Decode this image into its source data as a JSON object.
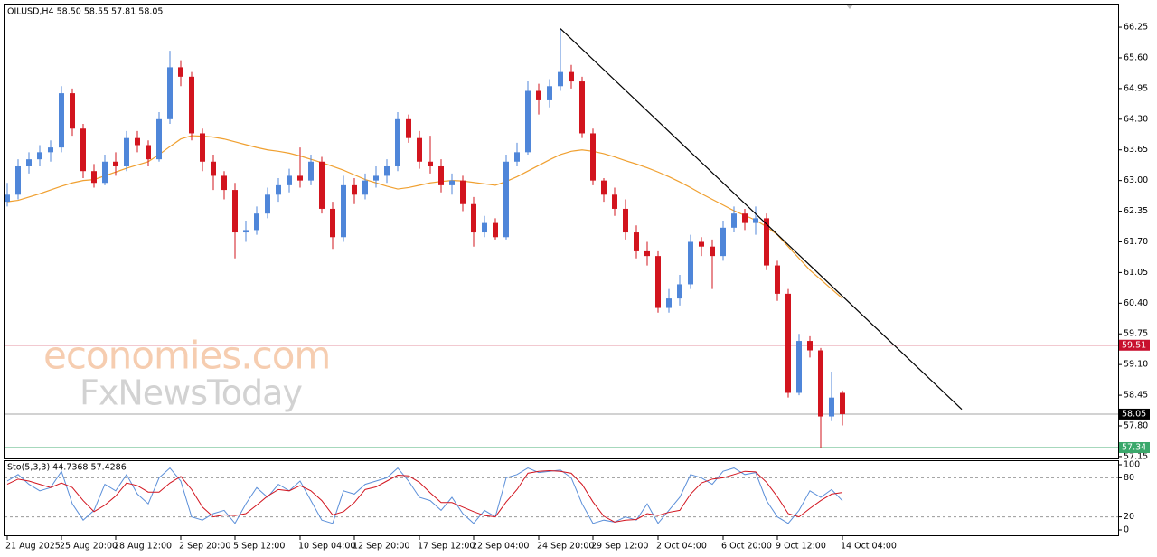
{
  "chart_data": {
    "type": "candlestick",
    "title": "OILUSD,H4  58.50 58.55 57.81 58.05",
    "up_color": "#4f86d9",
    "down_color": "#d2141e",
    "categories": [
      "21 Aug 2025",
      null,
      null,
      null,
      null,
      "25 Aug 20:00",
      null,
      null,
      null,
      null,
      "28 Aug 12:00",
      null,
      null,
      null,
      null,
      null,
      "2 Sep 20:00",
      null,
      null,
      null,
      null,
      "5 Sep 12:00",
      null,
      null,
      null,
      null,
      null,
      "10 Sep 04:00",
      null,
      null,
      null,
      null,
      "12 Sep 20:00",
      null,
      null,
      null,
      null,
      null,
      "17 Sep 12:00",
      null,
      null,
      null,
      null,
      "22 Sep 04:00",
      null,
      null,
      null,
      null,
      null,
      "24 Sep 20:00",
      null,
      null,
      null,
      null,
      "29 Sep 12:00",
      null,
      null,
      null,
      null,
      null,
      "2 Oct 04:00",
      null,
      null,
      null,
      null,
      null,
      "6 Oct 20:00",
      null,
      null,
      null,
      null,
      "9 Oct 12:00",
      null,
      null,
      null,
      null,
      null,
      "14 Oct 04:00"
    ],
    "candles": [
      [
        62.55,
        62.95,
        62.45,
        62.7
      ],
      [
        62.7,
        63.45,
        62.6,
        63.3
      ],
      [
        63.3,
        63.6,
        63.15,
        63.45
      ],
      [
        63.45,
        63.75,
        63.3,
        63.6
      ],
      [
        63.6,
        63.85,
        63.4,
        63.7
      ],
      [
        63.7,
        65.0,
        63.6,
        64.85
      ],
      [
        64.85,
        64.95,
        63.95,
        64.1
      ],
      [
        64.1,
        64.2,
        63.05,
        63.2
      ],
      [
        63.2,
        63.35,
        62.85,
        62.95
      ],
      [
        62.95,
        63.55,
        62.9,
        63.4
      ],
      [
        63.4,
        63.6,
        63.1,
        63.3
      ],
      [
        63.3,
        64.05,
        63.2,
        63.9
      ],
      [
        63.9,
        64.05,
        63.6,
        63.75
      ],
      [
        63.75,
        63.85,
        63.3,
        63.45
      ],
      [
        63.45,
        64.45,
        63.4,
        64.3
      ],
      [
        64.3,
        65.75,
        64.2,
        65.4
      ],
      [
        65.4,
        65.55,
        65.0,
        65.2
      ],
      [
        65.2,
        65.3,
        63.85,
        64.0
      ],
      [
        64.0,
        64.1,
        63.2,
        63.4
      ],
      [
        63.4,
        63.55,
        62.8,
        63.1
      ],
      [
        63.1,
        63.2,
        62.6,
        62.8
      ],
      [
        62.8,
        62.95,
        61.35,
        61.9
      ],
      [
        61.9,
        62.15,
        61.7,
        61.95
      ],
      [
        61.95,
        62.45,
        61.85,
        62.3
      ],
      [
        62.3,
        62.85,
        62.2,
        62.7
      ],
      [
        62.7,
        63.05,
        62.55,
        62.9
      ],
      [
        62.9,
        63.25,
        62.75,
        63.1
      ],
      [
        63.1,
        63.7,
        62.85,
        63.0
      ],
      [
        63.0,
        63.55,
        62.9,
        63.4
      ],
      [
        63.4,
        63.5,
        62.3,
        62.4
      ],
      [
        62.4,
        62.55,
        61.55,
        61.8
      ],
      [
        61.8,
        63.1,
        61.7,
        62.9
      ],
      [
        62.9,
        63.05,
        62.5,
        62.7
      ],
      [
        62.7,
        63.15,
        62.6,
        63.0
      ],
      [
        63.0,
        63.3,
        62.85,
        63.1
      ],
      [
        63.1,
        63.45,
        62.95,
        63.3
      ],
      [
        63.3,
        64.45,
        63.2,
        64.3
      ],
      [
        64.3,
        64.4,
        63.8,
        63.9
      ],
      [
        63.9,
        64.05,
        63.25,
        63.4
      ],
      [
        63.4,
        63.95,
        63.15,
        63.3
      ],
      [
        63.3,
        63.45,
        62.75,
        62.9
      ],
      [
        62.9,
        63.15,
        62.7,
        63.0
      ],
      [
        63.0,
        63.1,
        62.35,
        62.5
      ],
      [
        62.5,
        62.65,
        61.6,
        61.9
      ],
      [
        61.9,
        62.25,
        61.8,
        62.1
      ],
      [
        62.1,
        62.2,
        61.75,
        61.8
      ],
      [
        61.8,
        63.55,
        61.75,
        63.4
      ],
      [
        63.4,
        63.8,
        63.3,
        63.6
      ],
      [
        63.6,
        65.1,
        63.55,
        64.9
      ],
      [
        64.9,
        65.05,
        64.4,
        64.7
      ],
      [
        64.7,
        65.15,
        64.55,
        65.0
      ],
      [
        65.0,
        66.22,
        64.9,
        65.3
      ],
      [
        65.3,
        65.45,
        64.95,
        65.1
      ],
      [
        65.1,
        65.2,
        63.9,
        64.0
      ],
      [
        64.0,
        64.1,
        62.9,
        63.0
      ],
      [
        63.0,
        63.05,
        62.55,
        62.7
      ],
      [
        62.7,
        62.85,
        62.25,
        62.4
      ],
      [
        62.4,
        62.6,
        61.75,
        61.9
      ],
      [
        61.9,
        62.05,
        61.35,
        61.5
      ],
      [
        61.5,
        61.7,
        61.2,
        61.4
      ],
      [
        61.4,
        61.5,
        60.2,
        60.3
      ],
      [
        60.3,
        60.7,
        60.2,
        60.5
      ],
      [
        60.5,
        61.0,
        60.35,
        60.8
      ],
      [
        60.8,
        61.85,
        60.7,
        61.7
      ],
      [
        61.7,
        61.8,
        61.4,
        61.6
      ],
      [
        61.6,
        61.75,
        60.7,
        61.4
      ],
      [
        61.4,
        62.15,
        61.3,
        62.0
      ],
      [
        62.0,
        62.45,
        61.9,
        62.3
      ],
      [
        62.3,
        62.4,
        61.95,
        62.1
      ],
      [
        62.1,
        62.45,
        61.85,
        62.2
      ],
      [
        62.2,
        62.3,
        61.1,
        61.2
      ],
      [
        61.2,
        61.3,
        60.45,
        60.6
      ],
      [
        60.6,
        60.7,
        58.4,
        58.5
      ],
      [
        58.5,
        59.75,
        58.45,
        59.6
      ],
      [
        59.6,
        59.7,
        59.25,
        59.4
      ],
      [
        59.4,
        59.45,
        57.34,
        58.0
      ],
      [
        58.0,
        58.95,
        57.9,
        58.4
      ],
      [
        58.5,
        58.55,
        57.81,
        58.05
      ]
    ],
    "moving_average": {
      "color": "#f0a030",
      "values": [
        62.55,
        62.58,
        62.65,
        62.72,
        62.8,
        62.88,
        62.95,
        63.0,
        63.02,
        63.1,
        63.18,
        63.26,
        63.33,
        63.4,
        63.55,
        63.72,
        63.88,
        63.95,
        63.94,
        63.92,
        63.88,
        63.82,
        63.76,
        63.7,
        63.65,
        63.62,
        63.58,
        63.52,
        63.45,
        63.38,
        63.3,
        63.22,
        63.12,
        63.02,
        62.95,
        62.88,
        62.82,
        62.85,
        62.9,
        62.95,
        62.98,
        63.0,
        62.99,
        62.96,
        62.93,
        62.9,
        62.98,
        63.08,
        63.2,
        63.32,
        63.44,
        63.55,
        63.62,
        63.65,
        63.62,
        63.57,
        63.5,
        63.42,
        63.35,
        63.27,
        63.18,
        63.08,
        62.97,
        62.85,
        62.72,
        62.6,
        62.48,
        62.36,
        62.26,
        62.16,
        62.02,
        61.85,
        61.6,
        61.35,
        61.1,
        60.9,
        60.7,
        60.5
      ]
    },
    "trend_line": {
      "color": "#000000",
      "x": [
        51,
        88
      ],
      "y": [
        66.22,
        58.15
      ]
    },
    "levels": [
      {
        "value": 59.51,
        "color": "#c8102e"
      },
      {
        "value": 58.05,
        "color": "#000000"
      },
      {
        "value": 57.34,
        "color": "#3aa86b"
      }
    ],
    "ylim": [
      57.11,
      66.73
    ],
    "yticks": [
      66.25,
      {
        "value": 65.6,
        "label": "65.60"
      },
      64.95,
      {
        "value": 64.3,
        "label": "64.30"
      },
      63.65,
      {
        "value": 63.0,
        "label": "63.00"
      },
      62.35,
      {
        "value": 61.7,
        "label": "61.70"
      },
      61.05,
      {
        "value": 60.4,
        "label": "60.40"
      },
      59.75,
      {
        "value": 59.1,
        "label": "59.10"
      },
      58.45,
      {
        "value": 57.8,
        "label": "57.80"
      },
      57.15
    ],
    "watermark": [
      "economies.com",
      "FxNewsToday"
    ],
    "oscillator": {
      "type": "line",
      "title": "Sto(5,3,3) 44.7368 57.4286",
      "ylim": [
        0,
        100
      ],
      "yticks": [
        100,
        80,
        20,
        0
      ],
      "series": [
        {
          "color": "#5b8fd9",
          "values": [
            75,
            85,
            70,
            60,
            65,
            90,
            40,
            15,
            30,
            70,
            60,
            85,
            55,
            40,
            80,
            95,
            75,
            20,
            15,
            25,
            30,
            10,
            40,
            65,
            50,
            70,
            60,
            75,
            45,
            15,
            10,
            60,
            55,
            70,
            75,
            80,
            95,
            75,
            50,
            45,
            30,
            50,
            25,
            10,
            30,
            20,
            80,
            85,
            95,
            88,
            90,
            92,
            80,
            40,
            10,
            15,
            12,
            20,
            15,
            40,
            10,
            30,
            50,
            85,
            80,
            70,
            90,
            95,
            85,
            88,
            45,
            20,
            10,
            30,
            60,
            50,
            62,
            44.7368
          ]
        },
        {
          "color": "#d2141e",
          "values": [
            70,
            78,
            75,
            70,
            65,
            72,
            65,
            45,
            28,
            38,
            52,
            72,
            68,
            58,
            58,
            72,
            82,
            62,
            35,
            20,
            23,
            22,
            25,
            38,
            52,
            62,
            60,
            68,
            60,
            45,
            23,
            28,
            42,
            62,
            66,
            75,
            84,
            83,
            73,
            57,
            42,
            42,
            35,
            28,
            22,
            20,
            43,
            62,
            87,
            90,
            91,
            90,
            87,
            70,
            43,
            21,
            12,
            15,
            16,
            25,
            22,
            27,
            30,
            55,
            72,
            78,
            80,
            85,
            90,
            89,
            73,
            51,
            25,
            20,
            33,
            45,
            55,
            57.4286
          ]
        }
      ]
    }
  }
}
